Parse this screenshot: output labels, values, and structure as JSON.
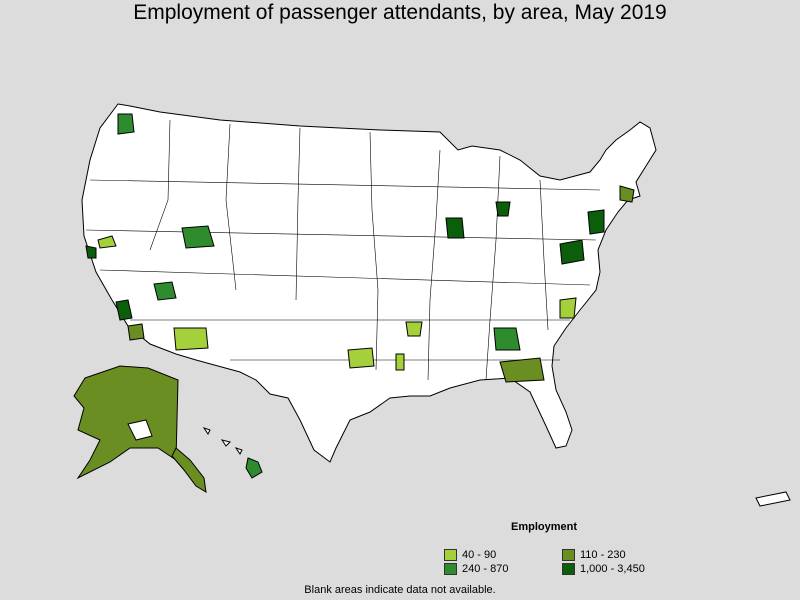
{
  "title": "Employment of passenger attendants, by area, May 2019",
  "legend": {
    "title": "Employment",
    "items": [
      {
        "label": "40 - 90",
        "color": "#a4d13b"
      },
      {
        "label": "110 - 230",
        "color": "#6b8e23"
      },
      {
        "label": "240 - 870",
        "color": "#2e8b2e"
      },
      {
        "label": "1,000 - 3,450",
        "color": "#0b5f0b"
      }
    ]
  },
  "footnote": "Blank areas indicate data not available.",
  "colors": {
    "background": "#dcdcdc",
    "land": "#ffffff",
    "border": "#000000"
  }
}
